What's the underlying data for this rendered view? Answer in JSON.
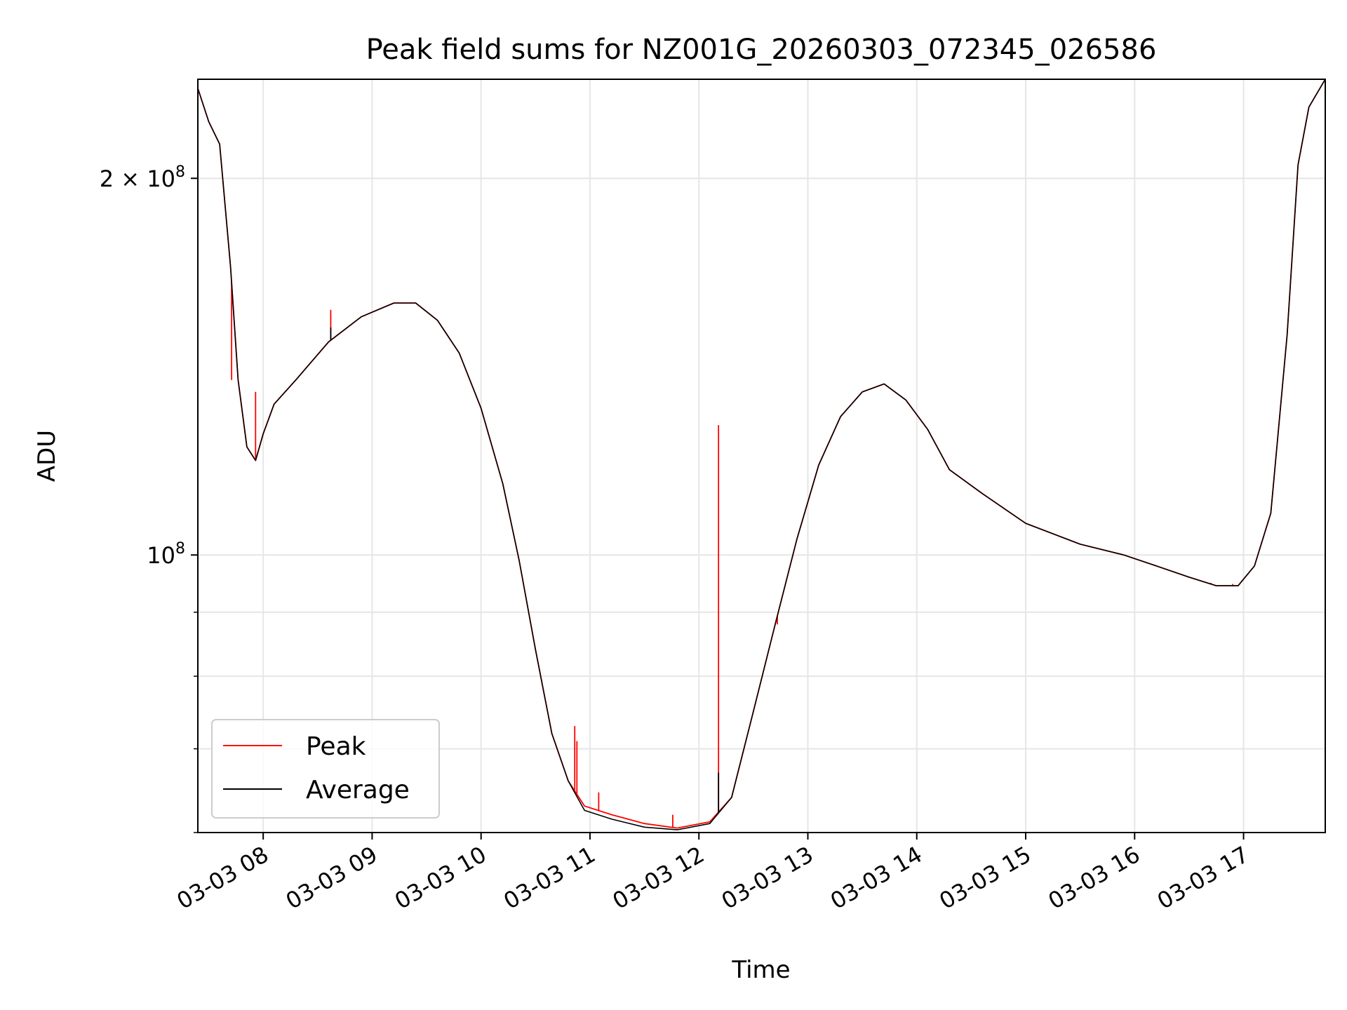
{
  "chart_data": {
    "type": "line",
    "title": "Peak field sums for NZ001G_20260303_072345_026586",
    "xlabel": "Time",
    "ylabel": "ADU",
    "yscale": "log",
    "ylim": [
      60000000,
      240000000
    ],
    "xlim_hours": [
      7.4,
      17.75
    ],
    "grid": true,
    "legend_position": "lower-left",
    "x_ticks": [
      {
        "hour": 8,
        "label": "03-03 08"
      },
      {
        "hour": 9,
        "label": "03-03 09"
      },
      {
        "hour": 10,
        "label": "03-03 10"
      },
      {
        "hour": 11,
        "label": "03-03 11"
      },
      {
        "hour": 12,
        "label": "03-03 12"
      },
      {
        "hour": 13,
        "label": "03-03 13"
      },
      {
        "hour": 14,
        "label": "03-03 14"
      },
      {
        "hour": 15,
        "label": "03-03 15"
      },
      {
        "hour": 16,
        "label": "03-03 16"
      },
      {
        "hour": 17,
        "label": "03-03 17"
      }
    ],
    "y_major_ticks": [
      {
        "value": 100000000,
        "base": "10",
        "exp": "8"
      },
      {
        "value": 200000000,
        "base": "2 × 10",
        "exp": "8"
      }
    ],
    "y_minor_ticks": [
      60000000,
      70000000,
      80000000,
      90000000
    ],
    "series": [
      {
        "name": "Peak",
        "color": "#ff0000",
        "points": [
          [
            7.4,
            236000000
          ],
          [
            7.5,
            222000000
          ],
          [
            7.6,
            213000000
          ],
          [
            7.7,
            170000000
          ],
          [
            7.77,
            138000000
          ],
          [
            7.85,
            122000000
          ],
          [
            7.93,
            119000000
          ],
          [
            8.0,
            125000000
          ],
          [
            8.1,
            132000000
          ],
          [
            8.3,
            138000000
          ],
          [
            8.6,
            148000000
          ],
          [
            8.9,
            155000000
          ],
          [
            9.2,
            159000000
          ],
          [
            9.4,
            159000000
          ],
          [
            9.6,
            154000000
          ],
          [
            9.8,
            145000000
          ],
          [
            10.0,
            131000000
          ],
          [
            10.2,
            114000000
          ],
          [
            10.35,
            99000000
          ],
          [
            10.5,
            84000000
          ],
          [
            10.65,
            72000000
          ],
          [
            10.8,
            66000000
          ],
          [
            10.95,
            63000000
          ],
          [
            11.2,
            62000000
          ],
          [
            11.5,
            61000000
          ],
          [
            11.8,
            60500000
          ],
          [
            12.1,
            61200000
          ],
          [
            12.3,
            64000000
          ],
          [
            12.5,
            75000000
          ],
          [
            12.7,
            88000000
          ],
          [
            12.9,
            103000000
          ],
          [
            13.1,
            118000000
          ],
          [
            13.3,
            129000000
          ],
          [
            13.5,
            135000000
          ],
          [
            13.7,
            137000000
          ],
          [
            13.9,
            133000000
          ],
          [
            14.1,
            126000000
          ],
          [
            14.3,
            117000000
          ],
          [
            14.6,
            112000000
          ],
          [
            15.0,
            106000000
          ],
          [
            15.5,
            102000000
          ],
          [
            15.9,
            100000000
          ],
          [
            16.2,
            98000000
          ],
          [
            16.5,
            96000000
          ],
          [
            16.75,
            94500000
          ],
          [
            16.95,
            94500000
          ],
          [
            17.1,
            98000000
          ],
          [
            17.25,
            108000000
          ],
          [
            17.4,
            150000000
          ],
          [
            17.5,
            205000000
          ],
          [
            17.6,
            228000000
          ],
          [
            17.75,
            240000000
          ]
        ],
        "spikes": [
          [
            7.71,
            138000000
          ],
          [
            7.93,
            135000000
          ],
          [
            8.62,
            157000000
          ],
          [
            10.86,
            73000000
          ],
          [
            10.88,
            71000000
          ],
          [
            11.08,
            64600000
          ],
          [
            11.76,
            62000000
          ],
          [
            12.18,
            127000000
          ],
          [
            12.72,
            88000000
          ],
          [
            16.7,
            95000000
          ],
          [
            16.9,
            94800000
          ]
        ]
      },
      {
        "name": "Average",
        "color": "#000000",
        "points": [
          [
            7.4,
            236000000
          ],
          [
            7.5,
            222000000
          ],
          [
            7.6,
            213000000
          ],
          [
            7.7,
            170000000
          ],
          [
            7.77,
            138000000
          ],
          [
            7.85,
            122000000
          ],
          [
            7.93,
            119000000
          ],
          [
            8.0,
            125000000
          ],
          [
            8.1,
            132000000
          ],
          [
            8.3,
            138000000
          ],
          [
            8.6,
            148000000
          ],
          [
            8.9,
            155000000
          ],
          [
            9.2,
            159000000
          ],
          [
            9.4,
            159000000
          ],
          [
            9.6,
            154000000
          ],
          [
            9.8,
            145000000
          ],
          [
            10.0,
            131000000
          ],
          [
            10.2,
            114000000
          ],
          [
            10.35,
            99000000
          ],
          [
            10.5,
            84000000
          ],
          [
            10.65,
            72000000
          ],
          [
            10.8,
            66000000
          ],
          [
            10.95,
            62500000
          ],
          [
            11.2,
            61500000
          ],
          [
            11.5,
            60600000
          ],
          [
            11.8,
            60300000
          ],
          [
            12.1,
            61000000
          ],
          [
            12.3,
            64000000
          ],
          [
            12.5,
            75000000
          ],
          [
            12.7,
            88000000
          ],
          [
            12.9,
            103000000
          ],
          [
            13.1,
            118000000
          ],
          [
            13.3,
            129000000
          ],
          [
            13.5,
            135000000
          ],
          [
            13.7,
            137000000
          ],
          [
            13.9,
            133000000
          ],
          [
            14.1,
            126000000
          ],
          [
            14.3,
            117000000
          ],
          [
            14.6,
            112000000
          ],
          [
            15.0,
            106000000
          ],
          [
            15.5,
            102000000
          ],
          [
            15.9,
            100000000
          ],
          [
            16.2,
            98000000
          ],
          [
            16.5,
            96000000
          ],
          [
            16.75,
            94500000
          ],
          [
            16.95,
            94500000
          ],
          [
            17.1,
            98000000
          ],
          [
            17.25,
            108000000
          ],
          [
            17.4,
            150000000
          ],
          [
            17.5,
            205000000
          ],
          [
            17.6,
            228000000
          ],
          [
            17.75,
            240000000
          ]
        ],
        "spikes": [
          [
            8.62,
            152000000
          ],
          [
            12.18,
            67000000
          ]
        ]
      }
    ]
  }
}
